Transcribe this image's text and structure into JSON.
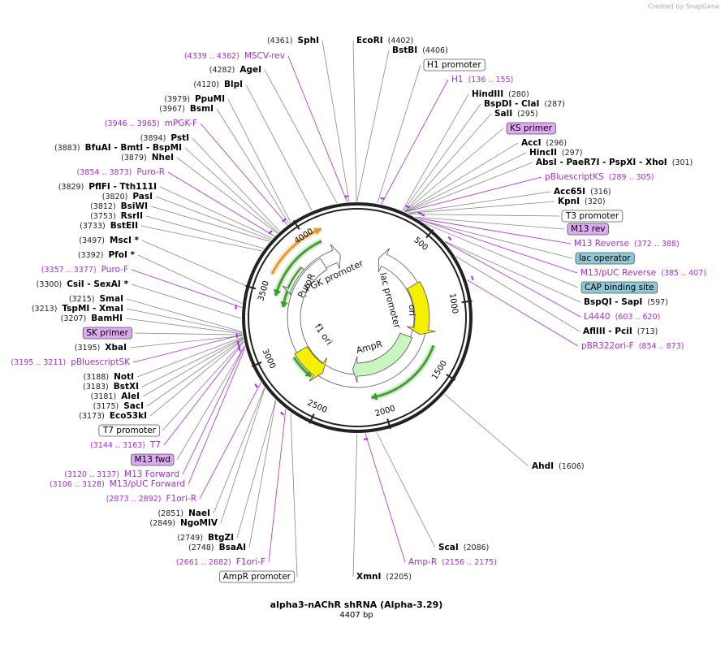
{
  "credit": "Created by SnapGene",
  "title": "alpha3-nAChR shRNA (Alpha-3.29)",
  "size": {
    "value": 4407,
    "label": "4407 bp"
  },
  "ring_ticks": [
    500,
    1000,
    1500,
    2000,
    2500,
    3000,
    3500,
    4000
  ],
  "features": [
    {
      "name": "PuroR"
    },
    {
      "name": "PGK promoter"
    },
    {
      "name": "lac promoter"
    },
    {
      "name": "ori"
    },
    {
      "name": "AmpR"
    },
    {
      "name": "f1 ori"
    }
  ],
  "labels": [
    {
      "kind": "site",
      "pos": "(4361)",
      "name": "SphI"
    },
    {
      "kind": "primer",
      "pos": "(4339 .. 4362)",
      "name": "MSCV-rev"
    },
    {
      "kind": "site",
      "pos": "(4282)",
      "name": "AgeI"
    },
    {
      "kind": "site",
      "pos": "(4120)",
      "name": "BlpI"
    },
    {
      "kind": "site",
      "pos": "(3979)",
      "name": "PpuMI"
    },
    {
      "kind": "site",
      "pos": "(3967)",
      "name": "BsmI"
    },
    {
      "kind": "primer",
      "pos": "(3946 .. 3965)",
      "name": "mPGK-F"
    },
    {
      "kind": "site",
      "pos": "(3894)",
      "name": "PstI"
    },
    {
      "kind": "site",
      "pos": "(3883)",
      "name": "BfuAI   - BmtI   - BspMI"
    },
    {
      "kind": "site",
      "pos": "(3879)",
      "name": "NheI"
    },
    {
      "kind": "primer",
      "pos": "(3854 .. 3873)",
      "name": "Puro-R"
    },
    {
      "kind": "site",
      "pos": "(3829)",
      "name": "PflFI   - Tth111I"
    },
    {
      "kind": "site",
      "pos": "(3820)",
      "name": "PasI"
    },
    {
      "kind": "site",
      "pos": "(3812)",
      "name": "BsiWI"
    },
    {
      "kind": "site",
      "pos": "(3753)",
      "name": "RsrII"
    },
    {
      "kind": "site",
      "pos": "(3733)",
      "name": "BstEII"
    },
    {
      "kind": "site",
      "pos": "(3497)",
      "name": "MscI *"
    },
    {
      "kind": "site",
      "pos": "(3392)",
      "name": "PfoI *"
    },
    {
      "kind": "primer",
      "pos": "(3357 .. 3377)",
      "name": "Puro-F"
    },
    {
      "kind": "site",
      "pos": "(3300)",
      "name": "CsiI   - SexAI *"
    },
    {
      "kind": "site",
      "pos": "(3215)",
      "name": "SmaI"
    },
    {
      "kind": "site",
      "pos": "(3213)",
      "name": "TspMI   - XmaI"
    },
    {
      "kind": "site",
      "pos": "(3207)",
      "name": "BamHI"
    },
    {
      "kind": "box",
      "name": "SK primer",
      "fill": "#dcaaf0"
    },
    {
      "kind": "site",
      "pos": "(3195)",
      "name": "XbaI"
    },
    {
      "kind": "primer",
      "pos": "(3195 .. 3211)",
      "name": "pBluescriptSK"
    },
    {
      "kind": "site",
      "pos": "(3188)",
      "name": "NotI"
    },
    {
      "kind": "site",
      "pos": "(3183)",
      "name": "BstXI"
    },
    {
      "kind": "site",
      "pos": "(3181)",
      "name": "AleI"
    },
    {
      "kind": "site",
      "pos": "(3175)",
      "name": "SacI"
    },
    {
      "kind": "site",
      "pos": "(3173)",
      "name": "Eco53kI"
    },
    {
      "kind": "box",
      "name": "T7 promoter",
      "fill": "#ffffff"
    },
    {
      "kind": "primer",
      "pos": "(3144 .. 3163)",
      "name": "T7"
    },
    {
      "kind": "box",
      "name": "M13 fwd",
      "fill": "#dcaaf0"
    },
    {
      "kind": "primer",
      "pos": "(3120 .. 3137)",
      "name": "M13 Forward"
    },
    {
      "kind": "primer",
      "pos": "(3106 .. 3128)",
      "name": "M13/pUC Forward"
    },
    {
      "kind": "primer",
      "pos": "(2873 .. 2892)",
      "name": "F1ori-R"
    },
    {
      "kind": "site",
      "pos": "(2851)",
      "name": "NaeI"
    },
    {
      "kind": "site",
      "pos": "(2849)",
      "name": "NgoMIV"
    },
    {
      "kind": "site",
      "pos": "(2749)",
      "name": "BtgZI"
    },
    {
      "kind": "site",
      "pos": "(2748)",
      "name": "BsaAI"
    },
    {
      "kind": "primer",
      "pos": "(2661 .. 2682)",
      "name": "F1ori-F"
    },
    {
      "kind": "box",
      "name": "AmpR promoter",
      "fill": "#ffffff"
    },
    {
      "kind": "site",
      "name": "EcoRI",
      "pos": "(4402)"
    },
    {
      "kind": "site",
      "name": "BstBI",
      "pos": "(4406)"
    },
    {
      "kind": "box",
      "name": "H1 promoter",
      "fill": "#ffffff"
    },
    {
      "kind": "primer",
      "name": "H1",
      "pos": "(136 .. 155)"
    },
    {
      "kind": "site",
      "name": "HindIII",
      "pos": "(280)"
    },
    {
      "kind": "site",
      "name": "BspDI   - ClaI",
      "pos": "(287)"
    },
    {
      "kind": "site",
      "name": "SalI",
      "pos": "(295)"
    },
    {
      "kind": "box",
      "name": "KS primer",
      "fill": "#dcaaf0"
    },
    {
      "kind": "site",
      "name": "AccI",
      "pos": "(296)"
    },
    {
      "kind": "site",
      "name": "HincII",
      "pos": "(297)"
    },
    {
      "kind": "site",
      "name": "AbsI   - PaeR7I   - PspXI   - XhoI",
      "pos": "(301)"
    },
    {
      "kind": "primer",
      "name": "pBluescriptKS",
      "pos": "(289 .. 305)"
    },
    {
      "kind": "site",
      "name": "Acc65I",
      "pos": "(316)"
    },
    {
      "kind": "site",
      "name": "KpnI",
      "pos": "(320)"
    },
    {
      "kind": "box",
      "name": "T3 promoter",
      "fill": "#ffffff"
    },
    {
      "kind": "box",
      "name": "M13 rev",
      "fill": "#dcaaf0"
    },
    {
      "kind": "primer",
      "name": "M13 Reverse",
      "pos": "(372 .. 388)"
    },
    {
      "kind": "box",
      "name": "lac operator",
      "fill": "#8ec8d4"
    },
    {
      "kind": "primer",
      "name": "M13/pUC Reverse",
      "pos": "(385 .. 407)"
    },
    {
      "kind": "box",
      "name": "CAP binding site",
      "fill": "#8ec8d4"
    },
    {
      "kind": "site",
      "name": "BspQI   - SapI",
      "pos": "(597)"
    },
    {
      "kind": "primer",
      "name": "L4440",
      "pos": "(603 .. 620)"
    },
    {
      "kind": "site",
      "name": "AflIII   - PciI",
      "pos": "(713)"
    },
    {
      "kind": "primer",
      "name": "pBR322ori-F",
      "pos": "(854 .. 873)"
    },
    {
      "kind": "site",
      "name": "AhdI",
      "pos": "(1606)"
    },
    {
      "kind": "site",
      "name": "ScaI",
      "pos": "(2086)"
    },
    {
      "kind": "primer",
      "name": "Amp-R",
      "pos": "(2156 .. 2175)"
    },
    {
      "kind": "site",
      "name": "XmnI",
      "pos": "(2205)"
    }
  ]
}
